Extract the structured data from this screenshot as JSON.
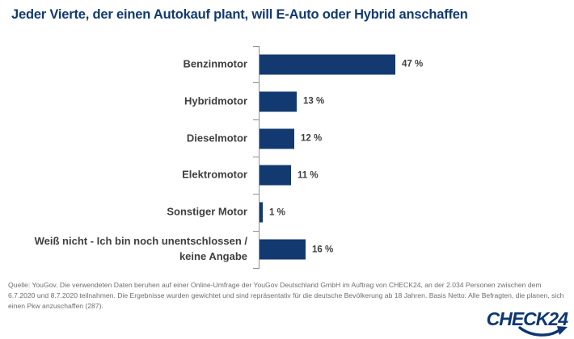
{
  "title": "Jeder Vierte, der einen Autokauf plant, will E-Auto oder Hybrid anschaffen",
  "chart_data": {
    "type": "bar",
    "orientation": "horizontal",
    "title": "Jeder Vierte, der einen Autokauf plant, will E-Auto oder Hybrid anschaffen",
    "categories": [
      "Benzinmotor",
      "Hybridmotor",
      "Dieselmotor",
      "Elektromotor",
      "Sonstiger Motor",
      "Weiß nicht - Ich bin noch unentschlossen /\nkeine Angabe"
    ],
    "values": [
      47,
      13,
      12,
      11,
      1,
      16
    ],
    "value_labels": [
      "47 %",
      "13 %",
      "12 %",
      "11 %",
      "1 %",
      "16 %"
    ],
    "unit": "%",
    "xlabel": "",
    "ylabel": "",
    "xlim": [
      0,
      50
    ],
    "grid": false,
    "legend": false,
    "bar_color": "#123a70",
    "axis_color": "#8f8f8f",
    "label_color": "#3f3f3f"
  },
  "source": {
    "lines": [
      "Quelle: YouGov. Die verwendeten Daten beruhen auf einer Online-Umfrage der YouGov Deutschland GmbH im Auftrag von CHECK24, an der 2.034 Personen zwischen dem",
      "6.7.2020 und 8.7.2020 teilnahmen. Die Ergebnisse wurden gewichtet und sind repräsentativ für die deutsche Bevölkerung ab 18 Jahren. Basis Netto: Alle Befragten, die planen, sich",
      "einen Pkw anzuschaffen (287)."
    ]
  },
  "logo": {
    "text": "CHECK24",
    "color": "#0d3672"
  },
  "colors": {
    "title_navy": "#123a70",
    "bar_navy": "#123a70",
    "axis_gray": "#8f8f8f",
    "text_gray": "#3f3f3f",
    "source_gray": "#6e6e6e",
    "background": "#ffffff"
  }
}
